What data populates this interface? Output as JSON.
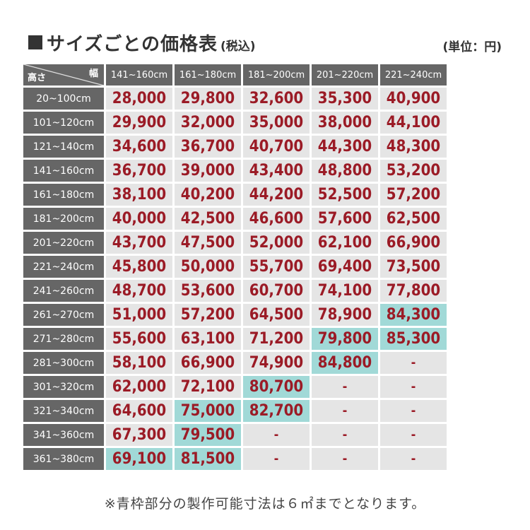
{
  "title": {
    "main": "サイズごとの価格表",
    "tax": "(税込)",
    "unit": "(単位：円)"
  },
  "table": {
    "corner_height_label": "高さ",
    "corner_width_label": "幅",
    "columns": [
      "141~160cm",
      "161~180cm",
      "181~200cm",
      "201~220cm",
      "221~240cm"
    ],
    "rows": [
      {
        "height": "20~100cm",
        "prices": [
          "28,000",
          "29,800",
          "32,600",
          "35,300",
          "40,900"
        ],
        "highlight": [
          false,
          false,
          false,
          false,
          false
        ]
      },
      {
        "height": "101~120cm",
        "prices": [
          "29,900",
          "32,000",
          "35,000",
          "38,000",
          "44,100"
        ],
        "highlight": [
          false,
          false,
          false,
          false,
          false
        ]
      },
      {
        "height": "121~140cm",
        "prices": [
          "34,600",
          "36,700",
          "40,700",
          "44,300",
          "48,300"
        ],
        "highlight": [
          false,
          false,
          false,
          false,
          false
        ]
      },
      {
        "height": "141~160cm",
        "prices": [
          "36,700",
          "39,000",
          "43,400",
          "48,800",
          "53,200"
        ],
        "highlight": [
          false,
          false,
          false,
          false,
          false
        ]
      },
      {
        "height": "161~180cm",
        "prices": [
          "38,100",
          "40,200",
          "44,200",
          "52,500",
          "57,200"
        ],
        "highlight": [
          false,
          false,
          false,
          false,
          false
        ]
      },
      {
        "height": "181~200cm",
        "prices": [
          "40,000",
          "42,500",
          "46,600",
          "57,600",
          "62,500"
        ],
        "highlight": [
          false,
          false,
          false,
          false,
          false
        ]
      },
      {
        "height": "201~220cm",
        "prices": [
          "43,700",
          "47,500",
          "52,000",
          "62,100",
          "66,900"
        ],
        "highlight": [
          false,
          false,
          false,
          false,
          false
        ]
      },
      {
        "height": "221~240cm",
        "prices": [
          "45,800",
          "50,000",
          "55,700",
          "69,400",
          "73,500"
        ],
        "highlight": [
          false,
          false,
          false,
          false,
          false
        ]
      },
      {
        "height": "241~260cm",
        "prices": [
          "48,700",
          "53,600",
          "60,700",
          "74,100",
          "77,800"
        ],
        "highlight": [
          false,
          false,
          false,
          false,
          false
        ]
      },
      {
        "height": "261~270cm",
        "prices": [
          "51,000",
          "57,200",
          "64,500",
          "78,900",
          "84,300"
        ],
        "highlight": [
          false,
          false,
          false,
          false,
          true
        ]
      },
      {
        "height": "271~280cm",
        "prices": [
          "55,600",
          "63,100",
          "71,200",
          "79,800",
          "85,300"
        ],
        "highlight": [
          false,
          false,
          false,
          true,
          true
        ]
      },
      {
        "height": "281~300cm",
        "prices": [
          "58,100",
          "66,900",
          "74,900",
          "84,800",
          "-"
        ],
        "highlight": [
          false,
          false,
          false,
          true,
          false
        ]
      },
      {
        "height": "301~320cm",
        "prices": [
          "62,000",
          "72,100",
          "80,700",
          "-",
          "-"
        ],
        "highlight": [
          false,
          false,
          true,
          false,
          false
        ]
      },
      {
        "height": "321~340cm",
        "prices": [
          "64,600",
          "75,000",
          "82,700",
          "-",
          "-"
        ],
        "highlight": [
          false,
          true,
          true,
          false,
          false
        ]
      },
      {
        "height": "341~360cm",
        "prices": [
          "67,300",
          "79,500",
          "-",
          "-",
          "-"
        ],
        "highlight": [
          false,
          true,
          false,
          false,
          false
        ]
      },
      {
        "height": "361~380cm",
        "prices": [
          "69,100",
          "81,500",
          "-",
          "-",
          "-"
        ],
        "highlight": [
          true,
          true,
          false,
          false,
          false
        ]
      }
    ]
  },
  "footnote": "※青枠部分の製作可能寸法は６㎡までとなります。",
  "colors": {
    "header_bg": "#666666",
    "cell_bg": "#e5e5e5",
    "highlight_bg": "#a1d9d7",
    "price_text": "#9b1b26"
  }
}
